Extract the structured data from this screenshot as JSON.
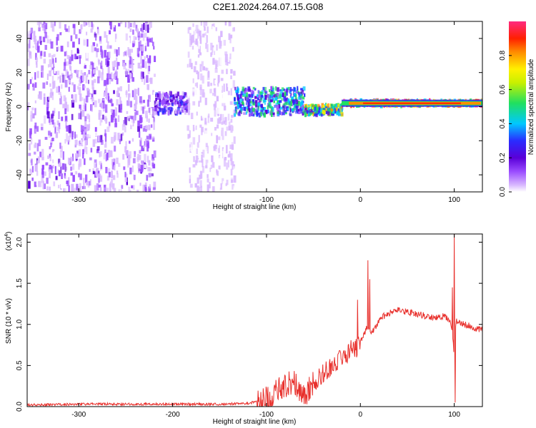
{
  "title": "C2E1.2024.264.07.15.G08",
  "colors": {
    "snr_line": "#e8302c",
    "colormap": [
      "#ffffff",
      "#d9b8ff",
      "#9a4bff",
      "#6a00e0",
      "#2a2cff",
      "#00c8ff",
      "#20e060",
      "#fff000",
      "#ff8c00",
      "#ff2000",
      "#ff2a80"
    ]
  },
  "chart_data": [
    {
      "type": "heatmap",
      "xlabel": "Height of straight line (km)",
      "ylabel": "Frequency (Hz)",
      "xlim": [
        -355,
        130
      ],
      "ylim": [
        -50,
        50
      ],
      "xticks": [
        -300,
        -200,
        -100,
        0,
        100
      ],
      "xtick_labels": [
        "-300",
        "-200",
        "-100",
        "0",
        "100"
      ],
      "yticks": [
        -40,
        -20,
        0,
        20,
        40
      ],
      "ytick_labels": [
        "-40",
        "-20",
        "0",
        "20",
        "40"
      ],
      "colorbar": {
        "label": "Normalized spectral amplitude",
        "range": [
          0,
          1
        ],
        "ticks": [
          0.0,
          0.2,
          0.4,
          0.6,
          0.8
        ],
        "tick_labels": [
          "0.0",
          "0.2",
          "0.4",
          "0.6",
          "0.8"
        ]
      },
      "regions": [
        {
          "x": [
            -355,
            -220
          ],
          "f_center": 0,
          "f_half_width": 50,
          "amplitude": 0.15
        },
        {
          "x": [
            -220,
            -185
          ],
          "f_center": 2,
          "f_half_width": 6,
          "amplitude": 0.3
        },
        {
          "x": [
            -185,
            -135
          ],
          "f_center": 0,
          "f_half_width": 50,
          "amplitude": 0.1
        },
        {
          "x": [
            -135,
            -60
          ],
          "f_center": 3,
          "f_half_width": 8,
          "amplitude": 0.5
        },
        {
          "x": [
            -60,
            -20
          ],
          "f_center": -2,
          "f_half_width": 3,
          "amplitude": 0.7
        },
        {
          "x": [
            -20,
            130
          ],
          "f_center": 2,
          "f_half_width": 1.5,
          "amplitude": 0.95
        }
      ]
    },
    {
      "type": "line",
      "xlabel": "Height of straight line (km)",
      "ylabel": "SNR (10 * v/v)",
      "y_multiplier_label": "(x10",
      "y_multiplier_exp": "4",
      "xlim": [
        -355,
        130
      ],
      "ylim": [
        0,
        2.1
      ],
      "xticks": [
        -300,
        -200,
        -100,
        0,
        100
      ],
      "xtick_labels": [
        "-300",
        "-200",
        "-100",
        "0",
        "100"
      ],
      "yticks": [
        0.0,
        0.5,
        1.0,
        1.5,
        2.0
      ],
      "ytick_labels": [
        "0.0",
        "0.5",
        "1.0",
        "1.5",
        "2.0"
      ],
      "series": [
        {
          "x": [
            -355,
            -300,
            -250,
            -200,
            -150,
            -120,
            -110,
            -100,
            -95,
            -90,
            -85,
            -80,
            -75,
            -70,
            -65,
            -60,
            -55,
            -50,
            -45,
            -40,
            -35,
            -30,
            -25,
            -20,
            -15,
            -10,
            -5,
            0,
            5,
            8,
            10,
            15,
            20,
            25,
            30,
            35,
            40,
            50,
            60,
            70,
            80,
            90,
            95,
            98,
            100,
            102,
            105,
            110,
            120,
            130
          ],
          "y": [
            0.02,
            0.03,
            0.03,
            0.03,
            0.03,
            0.04,
            0.06,
            0.1,
            0.13,
            0.18,
            0.22,
            0.26,
            0.28,
            0.3,
            0.22,
            0.15,
            0.2,
            0.28,
            0.35,
            0.4,
            0.45,
            0.5,
            0.55,
            0.58,
            0.62,
            0.75,
            0.7,
            0.8,
            0.9,
            1.0,
            0.88,
            0.95,
            1.05,
            1.1,
            1.13,
            1.15,
            1.17,
            1.15,
            1.13,
            1.1,
            1.08,
            1.1,
            1.05,
            0.95,
            0.6,
            1.05,
            1.02,
            1.0,
            0.97,
            0.93
          ]
        }
      ],
      "spikes": [
        {
          "x": -3,
          "y": 1.3
        },
        {
          "x": 8,
          "y": 1.78
        },
        {
          "x": 10,
          "y": 1.55
        },
        {
          "x": 100,
          "y": 2.1
        },
        {
          "x": 101,
          "y": 0.05
        },
        {
          "x": 98,
          "y": 1.45
        }
      ]
    }
  ]
}
